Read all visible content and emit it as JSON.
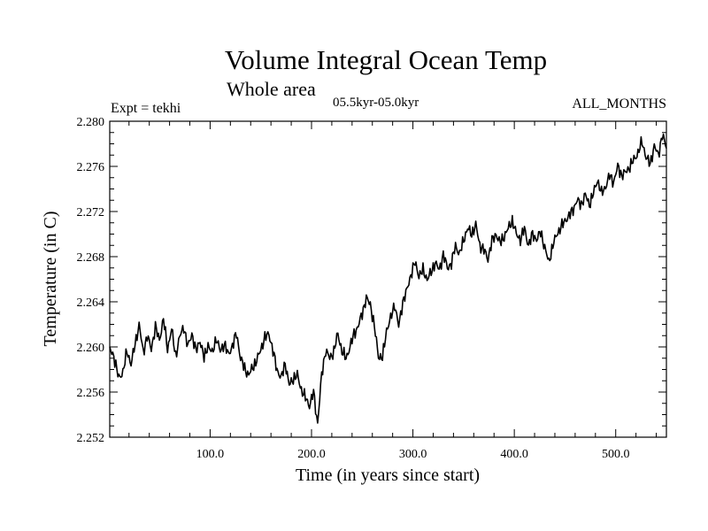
{
  "chart_data": {
    "type": "line",
    "title": "Volume Integral Ocean Temp",
    "subtitle": "Whole area",
    "period_label": "05.5kyr-05.0kyr",
    "experiment_label": "Expt = tekhi",
    "months_label": "ALL_MONTHS",
    "xlabel": "Time (in years since start)",
    "ylabel": "Temperature (in C)",
    "xlim": [
      1,
      550
    ],
    "ylim": [
      2.252,
      2.28
    ],
    "x_ticks": [
      100,
      200,
      300,
      400,
      500
    ],
    "x_tick_labels": [
      "100.0",
      "200.0",
      "300.0",
      "400.0",
      "500.0"
    ],
    "y_ticks": [
      2.252,
      2.256,
      2.26,
      2.264,
      2.268,
      2.272,
      2.276,
      2.28
    ],
    "y_tick_labels": [
      "2.252",
      "2.256",
      "2.260",
      "2.264",
      "2.268",
      "2.272",
      "2.276",
      "2.280"
    ],
    "grid": false,
    "series": [
      {
        "name": "Volume Integral Ocean Temp",
        "x": [
          1,
          5,
          10,
          14,
          18,
          22,
          26,
          30,
          34,
          38,
          42,
          46,
          50,
          54,
          58,
          62,
          66,
          70,
          74,
          78,
          82,
          86,
          90,
          94,
          98,
          102,
          106,
          110,
          114,
          118,
          122,
          126,
          130,
          134,
          138,
          142,
          146,
          150,
          154,
          158,
          162,
          166,
          170,
          174,
          178,
          182,
          186,
          190,
          194,
          198,
          202,
          206,
          210,
          214,
          218,
          222,
          226,
          230,
          234,
          238,
          242,
          246,
          250,
          254,
          258,
          262,
          266,
          270,
          274,
          278,
          282,
          286,
          290,
          294,
          298,
          302,
          306,
          310,
          314,
          318,
          322,
          326,
          330,
          334,
          338,
          342,
          346,
          350,
          354,
          358,
          362,
          366,
          370,
          374,
          378,
          382,
          386,
          390,
          394,
          398,
          402,
          406,
          410,
          414,
          418,
          422,
          426,
          430,
          434,
          438,
          442,
          446,
          450,
          454,
          458,
          462,
          466,
          470,
          474,
          478,
          482,
          486,
          490,
          494,
          498,
          502,
          506,
          510,
          514,
          518,
          522,
          526,
          530,
          534,
          538,
          542,
          546,
          550
        ],
        "y": [
          2.2598,
          2.2592,
          2.2572,
          2.2578,
          2.2596,
          2.2585,
          2.2602,
          2.262,
          2.2595,
          2.261,
          2.2598,
          2.2618,
          2.2606,
          2.2625,
          2.2598,
          2.2616,
          2.2592,
          2.2609,
          2.2618,
          2.26,
          2.2612,
          2.2596,
          2.2606,
          2.259,
          2.2602,
          2.2594,
          2.2608,
          2.2596,
          2.2603,
          2.2593,
          2.2601,
          2.2612,
          2.259,
          2.2581,
          2.2575,
          2.2582,
          2.2588,
          2.2598,
          2.2608,
          2.2612,
          2.2596,
          2.258,
          2.2572,
          2.2586,
          2.2566,
          2.2572,
          2.2575,
          2.2562,
          2.2555,
          2.2548,
          2.256,
          2.2532,
          2.2575,
          2.2597,
          2.259,
          2.2596,
          2.2612,
          2.2596,
          2.259,
          2.26,
          2.2612,
          2.2618,
          2.263,
          2.2643,
          2.2638,
          2.2618,
          2.2592,
          2.259,
          2.2615,
          2.2625,
          2.2638,
          2.2618,
          2.264,
          2.265,
          2.2664,
          2.2675,
          2.2663,
          2.2668,
          2.266,
          2.2666,
          2.2675,
          2.2668,
          2.2682,
          2.267,
          2.2674,
          2.269,
          2.2682,
          2.2695,
          2.2705,
          2.27,
          2.2708,
          2.269,
          2.2686,
          2.2678,
          2.2694,
          2.27,
          2.2692,
          2.2698,
          2.2705,
          2.2712,
          2.27,
          2.2695,
          2.2705,
          2.269,
          2.27,
          2.2695,
          2.2702,
          2.2688,
          2.2675,
          2.269,
          2.27,
          2.2706,
          2.2712,
          2.2716,
          2.2722,
          2.273,
          2.2726,
          2.2735,
          2.2726,
          2.2736,
          2.2748,
          2.2736,
          2.2742,
          2.2752,
          2.2746,
          2.276,
          2.2752,
          2.2755,
          2.276,
          2.2766,
          2.2772,
          2.2782,
          2.2768,
          2.2762,
          2.2778,
          2.277,
          2.2788,
          2.2776
        ]
      }
    ]
  }
}
